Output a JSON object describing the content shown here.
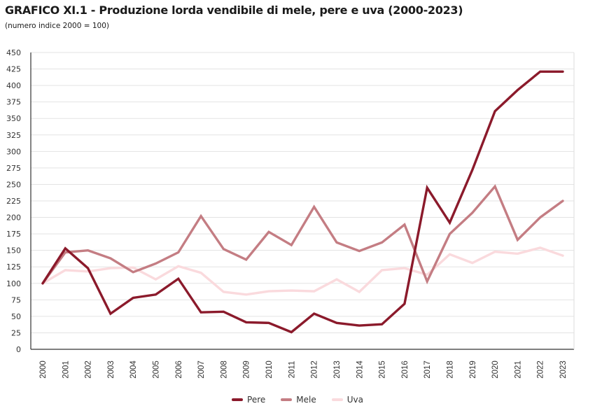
{
  "chart_data": {
    "type": "line",
    "title": "GRAFICO XI.1 - Produzione lorda vendibile di mele, pere e uva (2000-2023)",
    "subtitle": "(numero indice 2000 = 100)",
    "xlabel": "",
    "ylabel": "",
    "ylim": [
      0,
      450
    ],
    "yticks": [
      "0",
      "25",
      "50",
      "75",
      "100",
      "125",
      "150",
      "175",
      "200",
      "225",
      "250",
      "275",
      "300",
      "325",
      "350",
      "375",
      "400",
      "425",
      "450"
    ],
    "ytick_values": [
      0,
      25,
      50,
      75,
      100,
      125,
      150,
      175,
      200,
      225,
      250,
      275,
      300,
      325,
      350,
      375,
      400,
      425,
      450
    ],
    "grid": true,
    "legend_position": "bottom",
    "categories": [
      "2000",
      "2001",
      "2002",
      "2003",
      "2004",
      "2005",
      "2006",
      "2007",
      "2008",
      "2009",
      "2010",
      "2011",
      "2012",
      "2013",
      "2014",
      "2015",
      "2016",
      "2017",
      "2018",
      "2019",
      "2020",
      "2021",
      "2022",
      "2023"
    ],
    "series": [
      {
        "name": "Pere",
        "color": "#8b1a2b",
        "values": [
          100,
          153,
          123,
          54,
          78,
          83,
          107,
          56,
          57,
          41,
          40,
          26,
          54,
          40,
          36,
          38,
          69,
          245,
          192,
          272,
          361,
          393,
          421,
          421
        ]
      },
      {
        "name": "Mele",
        "color": "#c47d83",
        "values": [
          100,
          147,
          150,
          138,
          117,
          130,
          147,
          202,
          152,
          136,
          178,
          158,
          216,
          162,
          149,
          162,
          189,
          103,
          175,
          207,
          247,
          166,
          200,
          225
        ]
      },
      {
        "name": "Uva",
        "color": "#fadadd",
        "values": [
          100,
          120,
          118,
          123,
          124,
          106,
          126,
          116,
          87,
          83,
          88,
          89,
          88,
          106,
          87,
          120,
          123,
          113,
          144,
          131,
          148,
          145,
          154,
          142
        ]
      }
    ]
  }
}
